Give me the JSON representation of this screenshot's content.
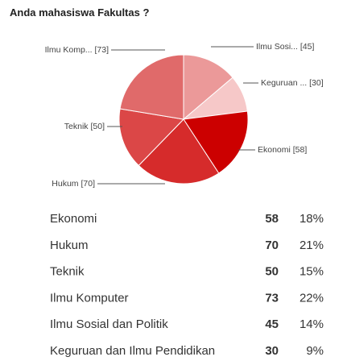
{
  "chart_data": {
    "type": "pie",
    "title": "Anda mahasiswa Fakultas ?",
    "categories": [
      "Ilmu Sosi... [45]",
      "Keguruan ... [30]",
      "Ekonomi [58]",
      "Hukum [70]",
      "Teknik [50]",
      "Ilmu Komp... [73]"
    ],
    "values": [
      45,
      30,
      58,
      70,
      50,
      73
    ],
    "colors": [
      "#eb9999",
      "#f6c8c8",
      "#cc0000",
      "#d62b2b",
      "#db4747",
      "#e06a6a"
    ]
  },
  "table": {
    "rows": [
      [
        "Ekonomi",
        58,
        "18%"
      ],
      [
        "Hukum",
        70,
        "21%"
      ],
      [
        "Teknik",
        50,
        "15%"
      ],
      [
        "Ilmu Komputer",
        73,
        "22%"
      ],
      [
        "Ilmu Sosial dan Politik",
        45,
        "14%"
      ],
      [
        "Keguruan dan Ilmu Pendidikan",
        30,
        "9%"
      ]
    ]
  }
}
